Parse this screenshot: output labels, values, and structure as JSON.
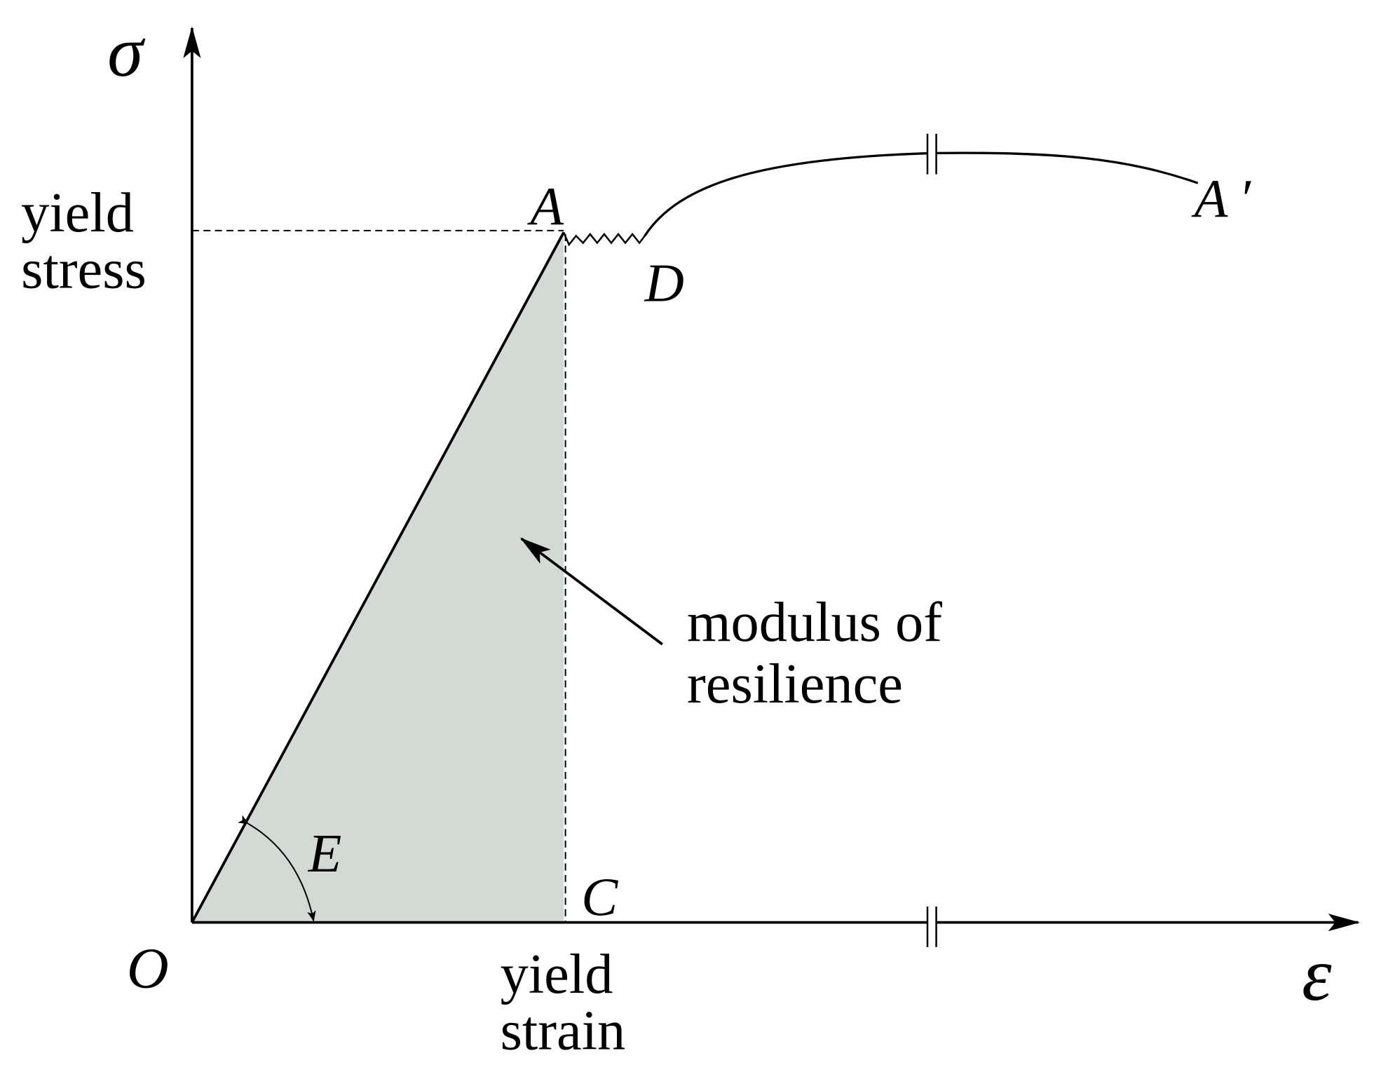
{
  "axes": {
    "y_label": "σ",
    "x_label": "ε",
    "origin_label": "O"
  },
  "points": {
    "A": "A",
    "A_prime": "A ′",
    "D": "D",
    "C": "C"
  },
  "labels": {
    "yield_stress": [
      "yield",
      "stress"
    ],
    "yield_strain": [
      "yield",
      "strain"
    ],
    "modulus": [
      "modulus of",
      "resilience"
    ],
    "slope": "E"
  }
}
